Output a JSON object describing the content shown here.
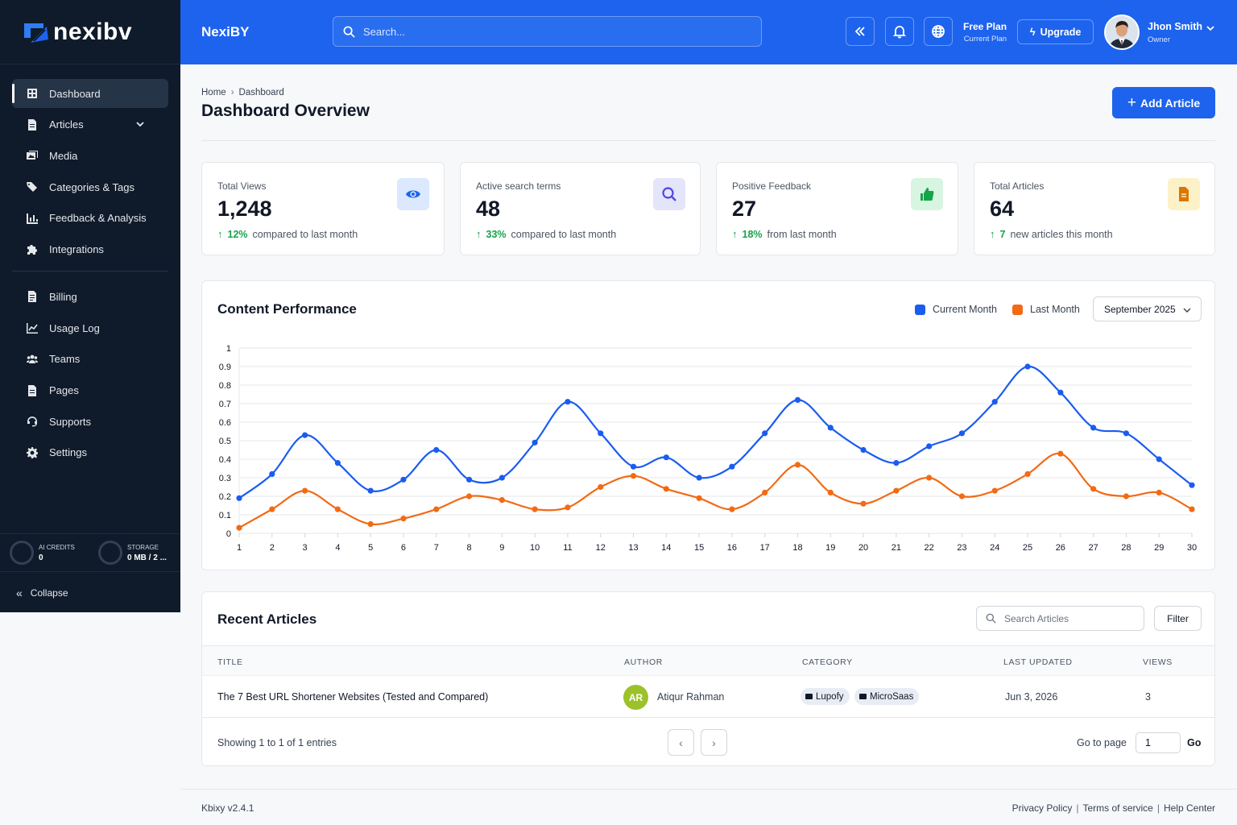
{
  "sidebar": {
    "logo_text": "nexibv",
    "items": [
      {
        "label": "Dashboard",
        "icon": "grid-icon",
        "active": true
      },
      {
        "label": "Articles",
        "icon": "document-icon",
        "has_submenu": true
      },
      {
        "label": "Media",
        "icon": "images-icon"
      },
      {
        "label": "Categories & Tags",
        "icon": "tags-icon"
      },
      {
        "label": "Feedback & Analysis",
        "icon": "bar-chart-icon"
      },
      {
        "label": "Integrations",
        "icon": "puzzle-icon"
      }
    ],
    "items2": [
      {
        "label": "Billing",
        "icon": "receipt-icon"
      },
      {
        "label": "Usage Log",
        "icon": "line-chart-icon"
      },
      {
        "label": "Teams",
        "icon": "users-icon"
      },
      {
        "label": "Pages",
        "icon": "page-icon"
      },
      {
        "label": "Supports",
        "icon": "headset-icon"
      },
      {
        "label": "Settings",
        "icon": "gear-icon"
      }
    ],
    "credits": {
      "label": "AI CREDITS",
      "value": "0"
    },
    "storage": {
      "label": "STORAGE",
      "value": "0 MB / 2 ..."
    },
    "collapse_label": "Collapse"
  },
  "header": {
    "brand": "NexiBY",
    "search_placeholder": "Search...",
    "plan_name": "Free Plan",
    "plan_sub": "Current Plan",
    "upgrade_label": "Upgrade",
    "user_name": "Jhon Smith",
    "user_role": "Owner"
  },
  "breadcrumb": {
    "home": "Home",
    "current": "Dashboard"
  },
  "page_title": "Dashboard Overview",
  "add_button_label": "Add Article",
  "stats": [
    {
      "label": "Total Views",
      "value": "1,248",
      "change": "12%",
      "note": "compared to last month",
      "icon": "eye-icon",
      "color": "#1d63ed",
      "bg": "#dbe8fd"
    },
    {
      "label": "Active search terms",
      "value": "48",
      "change": "33%",
      "note": "compared to last month",
      "icon": "search-icon",
      "color": "#4f46e5",
      "bg": "#e4e4fb"
    },
    {
      "label": "Positive Feedback",
      "value": "27",
      "change": "18%",
      "note": "from last month",
      "icon": "thumbs-up-icon",
      "color": "#16a34a",
      "bg": "#d7f5e1"
    },
    {
      "label": "Total Articles",
      "value": "64",
      "change": "7",
      "note": "new articles this month",
      "icon": "file-icon",
      "color": "#d97706",
      "bg": "#fdf1c7"
    }
  ],
  "performance": {
    "title": "Content Performance",
    "legend_current": "Current Month",
    "legend_last": "Last Month",
    "month_selected": "September 2025"
  },
  "chart_data": {
    "type": "line",
    "x": [
      1,
      2,
      3,
      4,
      5,
      6,
      7,
      8,
      9,
      10,
      11,
      12,
      13,
      14,
      15,
      16,
      17,
      18,
      19,
      20,
      21,
      22,
      23,
      24,
      25,
      26,
      27,
      28,
      29,
      30
    ],
    "series": [
      {
        "name": "Current Month",
        "color": "#1a5cf0",
        "values": [
          0.19,
          0.32,
          0.53,
          0.38,
          0.23,
          0.29,
          0.45,
          0.29,
          0.3,
          0.49,
          0.71,
          0.54,
          0.36,
          0.41,
          0.3,
          0.36,
          0.54,
          0.72,
          0.57,
          0.45,
          0.38,
          0.47,
          0.54,
          0.71,
          0.9,
          0.76,
          0.57,
          0.54,
          0.4,
          0.26
        ]
      },
      {
        "name": "Last Month",
        "color": "#f26a14",
        "values": [
          0.03,
          0.13,
          0.23,
          0.13,
          0.05,
          0.08,
          0.13,
          0.2,
          0.18,
          0.13,
          0.14,
          0.25,
          0.31,
          0.24,
          0.19,
          0.13,
          0.22,
          0.37,
          0.22,
          0.16,
          0.23,
          0.3,
          0.2,
          0.23,
          0.32,
          0.43,
          0.24,
          0.2,
          0.22,
          0.13
        ]
      }
    ],
    "yticks": [
      "0",
      "0.1",
      "0.2",
      "0.3",
      "0.4",
      "0.5",
      "0.6",
      "0.7",
      "0.8",
      "0.9",
      "1"
    ],
    "ylim": [
      0,
      1
    ],
    "grid": true,
    "legend_position": "top-right"
  },
  "recent": {
    "title": "Recent Articles",
    "search_placeholder": "Search Articles",
    "filter_label": "Filter",
    "columns": [
      "TITLE",
      "AUTHOR",
      "CATEGORY",
      "LAST UPDATED",
      "VIEWS"
    ],
    "rows": [
      {
        "title": "The 7 Best URL Shortener Websites (Tested and Compared)",
        "author_initials": "AR",
        "author": "Atiqur Rahman",
        "tags": [
          "Lupofy",
          "MicroSaas"
        ],
        "updated": "Jun 3, 2026",
        "views": "3"
      }
    ],
    "showing": "Showing 1 to 1 of 1 entries",
    "prev": "‹",
    "next": "›",
    "goto_label": "Go to page",
    "goto_value": "1",
    "go_label": "Go"
  },
  "footer": {
    "version": "Kbixy v2.4.1",
    "links": [
      "Privacy Policy",
      "Terms of service",
      "Help Center"
    ],
    "separator": "|"
  }
}
